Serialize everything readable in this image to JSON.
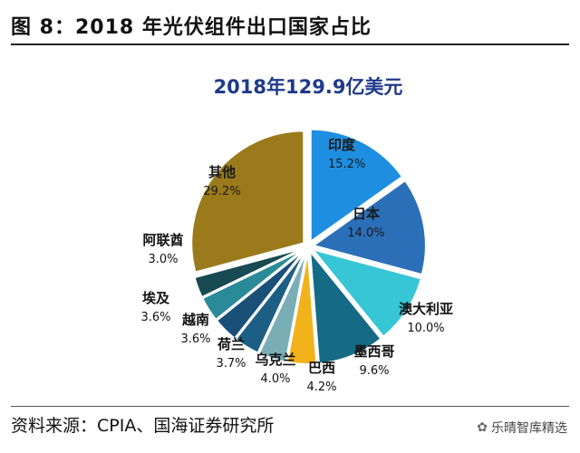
{
  "figure": {
    "title": "图 8：2018 年光伏组件出口国家占比",
    "source": "资料来源：CPIA、国海证券研究所",
    "watermark": "乐晴智库精选"
  },
  "chart_data": {
    "type": "pie",
    "title": "2018年129.9亿美元",
    "slices": [
      {
        "name": "印度",
        "value": 15.2,
        "label": "15.2%",
        "color": "#1e8fe0"
      },
      {
        "name": "日本",
        "value": 14.0,
        "label": "14.0%",
        "color": "#2b6fb8"
      },
      {
        "name": "澳大利亚",
        "value": 10.0,
        "label": "10.0%",
        "color": "#37c6d6"
      },
      {
        "name": "墨西哥",
        "value": 9.6,
        "label": "9.6%",
        "color": "#156a86"
      },
      {
        "name": "巴西",
        "value": 4.2,
        "label": "4.2%",
        "color": "#f2b21a"
      },
      {
        "name": "乌克兰",
        "value": 4.0,
        "label": "4.0%",
        "color": "#7aaeb6"
      },
      {
        "name": "荷兰",
        "value": 3.7,
        "label": "3.7%",
        "color": "#1d5f84"
      },
      {
        "name": "越南",
        "value": 3.6,
        "label": "3.6%",
        "color": "#1a4f78"
      },
      {
        "name": "埃及",
        "value": 3.6,
        "label": "3.6%",
        "color": "#2a8a98"
      },
      {
        "name": "阿联酋",
        "value": 3.0,
        "label": "3.0%",
        "color": "#174a52"
      },
      {
        "name": "其他",
        "value": 29.2,
        "label": "29.2%",
        "color": "#9a7a1a"
      }
    ]
  }
}
